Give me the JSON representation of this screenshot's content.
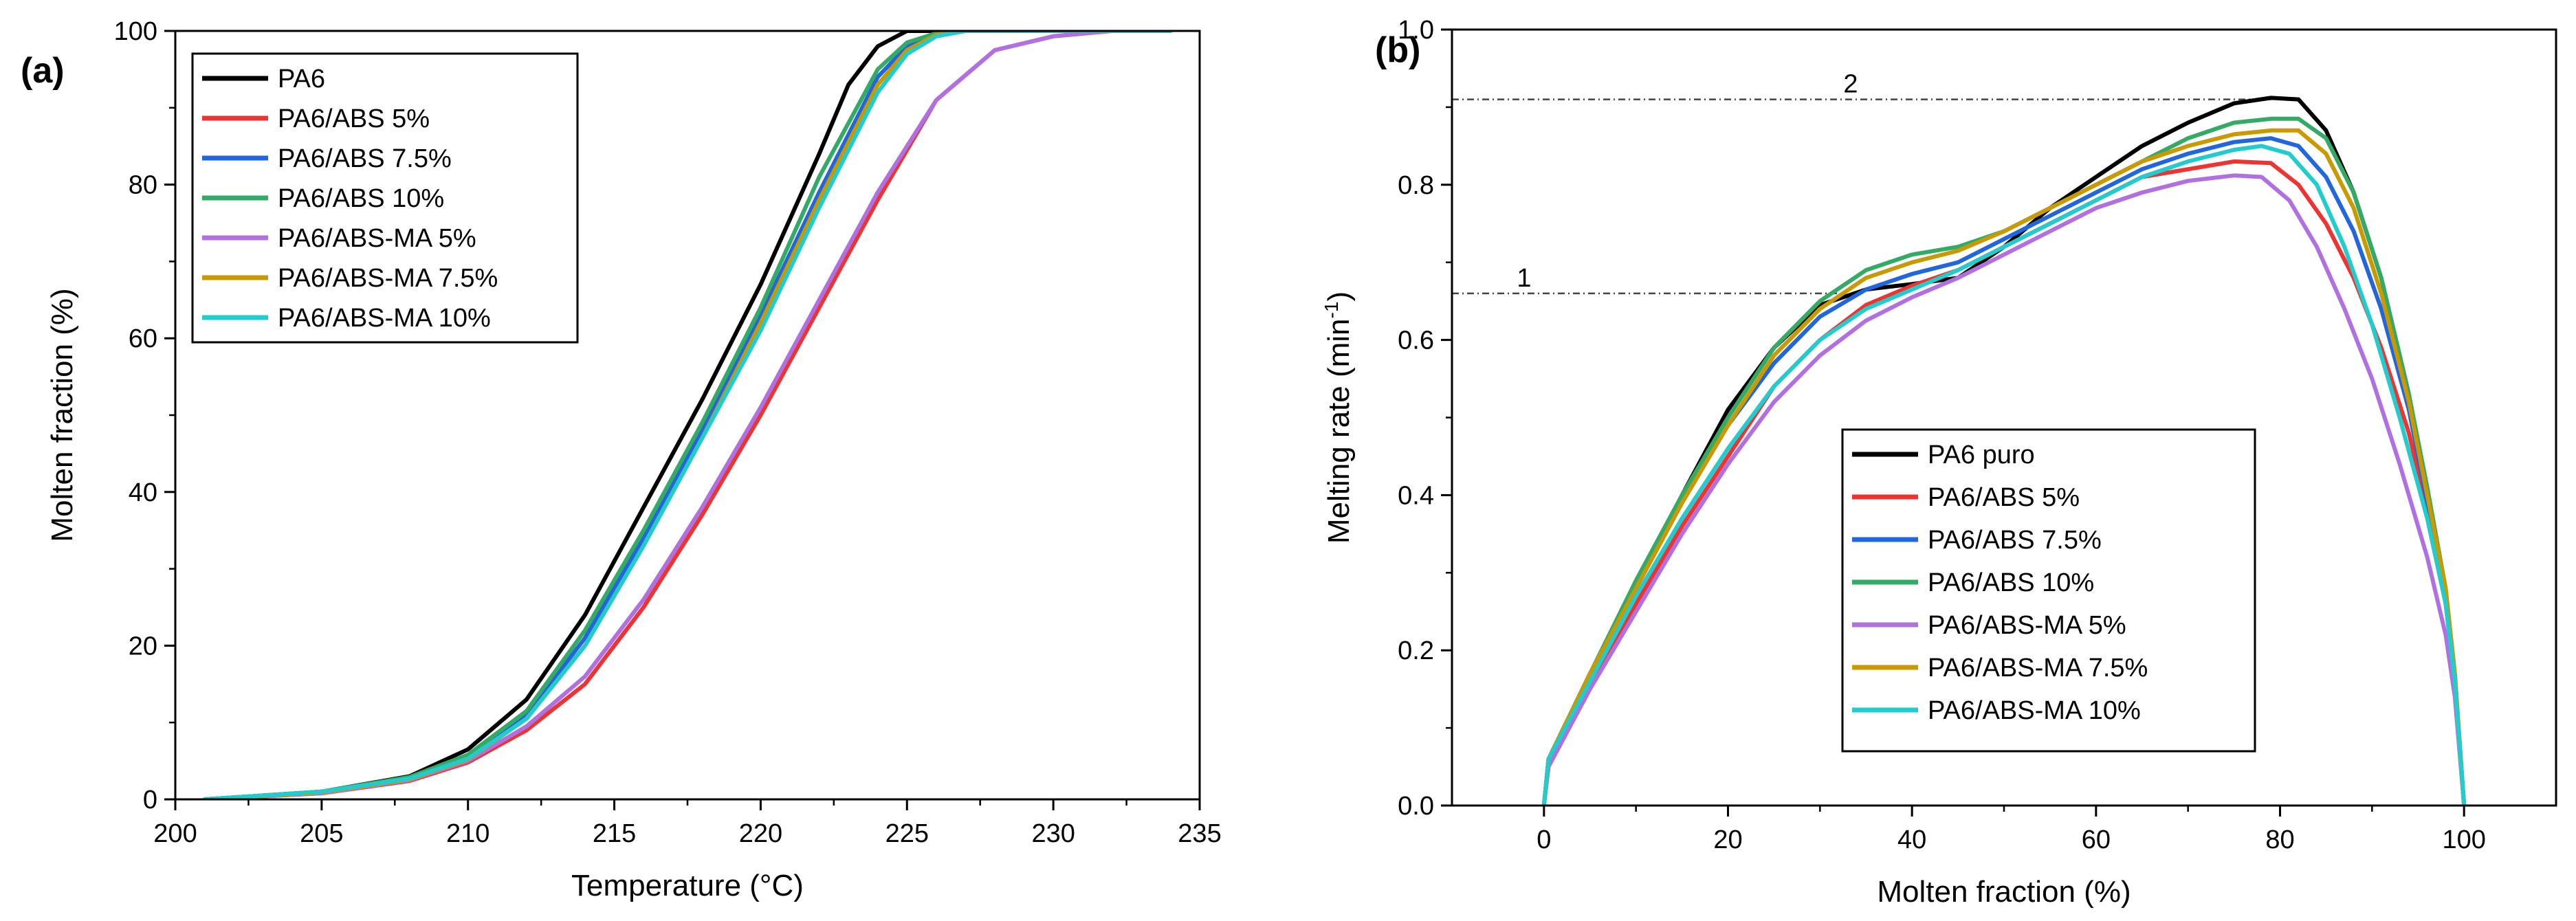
{
  "series_styles": [
    {
      "name": "PA6",
      "color": "#000000"
    },
    {
      "name": "PA6/ABS 5%",
      "color": "#ee3333"
    },
    {
      "name": "PA6/ABS 7.5%",
      "color": "#2266dd"
    },
    {
      "name": "PA6/ABS 10%",
      "color": "#33aa66"
    },
    {
      "name": "PA6/ABS-MA 5%",
      "color": "#b070e0"
    },
    {
      "name": "PA6/ABS-MA 7.5%",
      "color": "#c89a00"
    },
    {
      "name": "PA6/ABS-MA 10%",
      "color": "#22cccc"
    }
  ],
  "chart_data": [
    {
      "panel": "(a)",
      "type": "line",
      "title": "",
      "xlabel": "Temperature (°C)",
      "ylabel": "Molten fraction (%)",
      "xlim": [
        200,
        235
      ],
      "ylim": [
        0,
        100
      ],
      "xticks": [
        200,
        205,
        210,
        215,
        220,
        225,
        230,
        235
      ],
      "yticks": [
        0,
        20,
        40,
        60,
        80,
        100
      ],
      "legend_position": "top-left",
      "series": [
        {
          "name": "PA6",
          "x": [
            201,
            205,
            208,
            210,
            212,
            214,
            216,
            218,
            220,
            222,
            223,
            224,
            225,
            226,
            234
          ],
          "y": [
            0,
            1,
            3,
            6.5,
            13,
            24,
            38,
            52,
            67,
            84,
            93,
            98,
            100,
            100,
            100
          ]
        },
        {
          "name": "PA6/ABS 5%",
          "x": [
            201,
            205,
            208,
            210,
            212,
            214,
            216,
            218,
            220,
            222,
            224,
            226,
            228,
            230,
            232,
            234
          ],
          "y": [
            0,
            0.8,
            2.4,
            4.8,
            9,
            15,
            25,
            37,
            50,
            64,
            78,
            91,
            97.5,
            99.3,
            100,
            100
          ]
        },
        {
          "name": "PA6/ABS 7.5%",
          "x": [
            201,
            205,
            208,
            210,
            212,
            214,
            216,
            218,
            220,
            222,
            224,
            225,
            226,
            227,
            234
          ],
          "y": [
            0,
            1,
            2.8,
            5.5,
            11,
            21,
            34,
            48,
            63,
            79,
            94,
            98,
            99.5,
            100,
            100
          ]
        },
        {
          "name": "PA6/ABS 10%",
          "x": [
            201,
            205,
            208,
            210,
            212,
            214,
            216,
            218,
            220,
            222,
            224,
            225,
            226,
            227,
            234
          ],
          "y": [
            0,
            1,
            2.9,
            5.8,
            11.5,
            22,
            35,
            49,
            64,
            81,
            95,
            98.5,
            99.7,
            100,
            100
          ]
        },
        {
          "name": "PA6/ABS-MA 5%",
          "x": [
            201,
            205,
            208,
            210,
            212,
            214,
            216,
            218,
            220,
            222,
            224,
            226,
            228,
            230,
            232,
            234
          ],
          "y": [
            0,
            0.8,
            2.5,
            5,
            9.5,
            16,
            26,
            38,
            51,
            65,
            79,
            91,
            97.5,
            99.3,
            100,
            100
          ]
        },
        {
          "name": "PA6/ABS-MA 7.5%",
          "x": [
            201,
            205,
            208,
            210,
            212,
            214,
            216,
            218,
            220,
            222,
            224,
            225,
            226,
            227,
            234
          ],
          "y": [
            0,
            0.9,
            2.6,
            5.2,
            10.5,
            20,
            33,
            47,
            62,
            78,
            93,
            97.5,
            99.5,
            100,
            100
          ]
        },
        {
          "name": "PA6/ABS-MA 10%",
          "x": [
            201,
            205,
            208,
            210,
            212,
            214,
            216,
            218,
            220,
            222,
            224,
            225,
            226,
            227,
            234
          ],
          "y": [
            0,
            1,
            2.7,
            5.3,
            10.5,
            20,
            33,
            47,
            61,
            77,
            92,
            97,
            99.3,
            100,
            100
          ]
        }
      ]
    },
    {
      "panel": "(b)",
      "type": "line",
      "title": "",
      "xlabel": "Molten fraction (%)",
      "ylabel_main": "Melting rate (min",
      "ylabel_sup": "-1",
      "ylabel_end": ")",
      "xlim": [
        -10,
        110
      ],
      "ylim": [
        0,
        1.0
      ],
      "xticks": [
        0,
        20,
        40,
        60,
        80,
        100
      ],
      "yticks": [
        0.0,
        0.2,
        0.4,
        0.6,
        0.8,
        1.0
      ],
      "ytick_labels": [
        "0.0",
        "0.2",
        "0.4",
        "0.6",
        "0.8",
        "1.0"
      ],
      "legend_position": "center",
      "annotations": [
        {
          "label": "1",
          "y": 0.66,
          "x_from": -10,
          "x_to": 32
        },
        {
          "label": "2",
          "y": 0.91,
          "x_from": -10,
          "x_to": 79
        }
      ],
      "series": [
        {
          "name": "PA6 puro",
          "x": [
            0,
            0.5,
            5,
            10,
            15,
            20,
            25,
            30,
            35,
            40,
            45,
            50,
            55,
            60,
            65,
            70,
            75,
            79,
            82,
            85,
            88,
            91,
            94,
            96,
            98,
            99,
            100
          ],
          "y": [
            0,
            0.06,
            0.17,
            0.28,
            0.4,
            0.51,
            0.59,
            0.645,
            0.665,
            0.672,
            0.68,
            0.72,
            0.77,
            0.81,
            0.85,
            0.88,
            0.905,
            0.912,
            0.91,
            0.87,
            0.79,
            0.68,
            0.53,
            0.4,
            0.27,
            0.16,
            0
          ]
        },
        {
          "name": "PA6/ABS 5%",
          "x": [
            0,
            0.5,
            5,
            10,
            15,
            20,
            25,
            30,
            35,
            40,
            45,
            50,
            55,
            60,
            65,
            70,
            75,
            79,
            82,
            85,
            88,
            91,
            94,
            96,
            98,
            99,
            100
          ],
          "y": [
            0,
            0.06,
            0.16,
            0.26,
            0.36,
            0.45,
            0.54,
            0.6,
            0.645,
            0.67,
            0.69,
            0.72,
            0.75,
            0.78,
            0.81,
            0.82,
            0.83,
            0.828,
            0.8,
            0.75,
            0.68,
            0.59,
            0.48,
            0.38,
            0.26,
            0.16,
            0
          ]
        },
        {
          "name": "PA6/ABS 7.5%",
          "x": [
            0,
            0.5,
            5,
            10,
            15,
            20,
            25,
            30,
            35,
            40,
            45,
            50,
            55,
            60,
            65,
            70,
            75,
            79,
            82,
            85,
            88,
            91,
            94,
            96,
            98,
            99,
            100
          ],
          "y": [
            0,
            0.06,
            0.17,
            0.28,
            0.39,
            0.49,
            0.57,
            0.63,
            0.665,
            0.685,
            0.7,
            0.73,
            0.76,
            0.79,
            0.82,
            0.84,
            0.855,
            0.86,
            0.85,
            0.81,
            0.74,
            0.64,
            0.51,
            0.39,
            0.27,
            0.16,
            0
          ]
        },
        {
          "name": "PA6/ABS 10%",
          "x": [
            0,
            0.5,
            5,
            10,
            15,
            20,
            25,
            30,
            35,
            40,
            45,
            50,
            55,
            60,
            65,
            70,
            75,
            79,
            82,
            85,
            88,
            91,
            94,
            96,
            98,
            99,
            100
          ],
          "y": [
            0,
            0.06,
            0.17,
            0.29,
            0.4,
            0.5,
            0.59,
            0.65,
            0.69,
            0.71,
            0.72,
            0.74,
            0.77,
            0.8,
            0.83,
            0.86,
            0.88,
            0.885,
            0.885,
            0.86,
            0.79,
            0.68,
            0.53,
            0.41,
            0.28,
            0.17,
            0
          ]
        },
        {
          "name": "PA6/ABS-MA 5%",
          "x": [
            0,
            0.5,
            5,
            10,
            15,
            20,
            25,
            30,
            35,
            40,
            45,
            50,
            55,
            60,
            65,
            70,
            75,
            78,
            81,
            84,
            87,
            90,
            93,
            96,
            98,
            99,
            100
          ],
          "y": [
            0,
            0.05,
            0.15,
            0.25,
            0.35,
            0.44,
            0.52,
            0.58,
            0.625,
            0.655,
            0.68,
            0.71,
            0.74,
            0.77,
            0.79,
            0.805,
            0.812,
            0.81,
            0.78,
            0.72,
            0.64,
            0.55,
            0.44,
            0.32,
            0.22,
            0.14,
            0
          ]
        },
        {
          "name": "PA6/ABS-MA 7.5%",
          "x": [
            0,
            0.5,
            5,
            10,
            15,
            20,
            25,
            30,
            35,
            40,
            45,
            50,
            55,
            60,
            65,
            70,
            75,
            79,
            82,
            85,
            88,
            91,
            94,
            96,
            98,
            99,
            100
          ],
          "y": [
            0,
            0.06,
            0.17,
            0.28,
            0.39,
            0.49,
            0.58,
            0.64,
            0.68,
            0.7,
            0.715,
            0.74,
            0.77,
            0.8,
            0.83,
            0.85,
            0.865,
            0.87,
            0.87,
            0.84,
            0.77,
            0.66,
            0.52,
            0.4,
            0.28,
            0.17,
            0
          ]
        },
        {
          "name": "PA6/ABS-MA 10%",
          "x": [
            0,
            0.5,
            5,
            10,
            15,
            20,
            25,
            30,
            35,
            40,
            45,
            50,
            55,
            60,
            65,
            70,
            75,
            78,
            81,
            84,
            87,
            90,
            93,
            96,
            98,
            99,
            100
          ],
          "y": [
            0,
            0.06,
            0.16,
            0.27,
            0.37,
            0.46,
            0.54,
            0.6,
            0.64,
            0.665,
            0.69,
            0.72,
            0.75,
            0.78,
            0.81,
            0.83,
            0.845,
            0.85,
            0.84,
            0.8,
            0.72,
            0.62,
            0.5,
            0.37,
            0.26,
            0.16,
            0
          ]
        }
      ]
    }
  ]
}
